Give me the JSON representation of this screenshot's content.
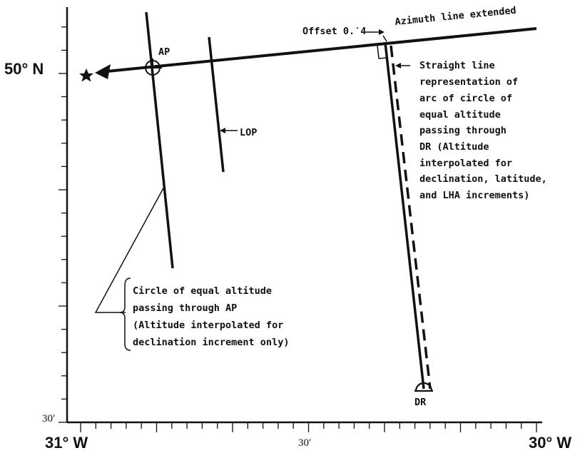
{
  "axes": {
    "lat_50N": "50° N",
    "lat_30min": "30′",
    "lon_31W": "31° W",
    "lon_30min": "30′",
    "lon_30W": "30° W"
  },
  "labels": {
    "ap": "AP",
    "lop": "LOP",
    "dr": "DR",
    "offset": "Offset 0.′4",
    "azimuth_line": "Azimuth line extended"
  },
  "notes": {
    "straight_line": [
      "Straight line",
      "representation of",
      "arc of circle of",
      "equal altitude",
      "passing through",
      "DR (Altitude",
      "interpolated for",
      "declination, latitude,",
      "and LHA increments)"
    ],
    "circle_ap": [
      "Circle of equal altitude",
      "passing through AP",
      "(Altitude interpolated for",
      "declination increment only)"
    ]
  },
  "colors": {
    "ink": "#111111",
    "paper": "#ffffff"
  },
  "icons": {
    "star": "star-icon",
    "ap_marker": "circle-cross-icon",
    "dr_marker": "semicircle-icon"
  }
}
